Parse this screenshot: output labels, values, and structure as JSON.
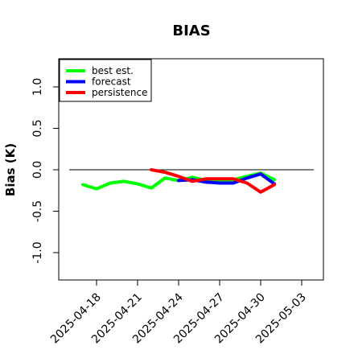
{
  "chart_data": {
    "type": "line",
    "title": "BIAS",
    "xlabel": "",
    "ylabel": "Bias (K)",
    "ylim": [
      -1.35,
      1.35
    ],
    "xlim": [
      "2025-04-15",
      "2025-05-04"
    ],
    "yticks": [
      1.0,
      0.5,
      0.0,
      -0.5,
      -1.0
    ],
    "ytick_labels": [
      "1.0",
      "0.5",
      "0.0",
      "-0.5",
      "-1.0"
    ],
    "xticks": [
      "2025-04-18",
      "2025-04-21",
      "2025-04-24",
      "2025-04-27",
      "2025-04-30",
      "2025-05-03"
    ],
    "xtick_labels": [
      "2025-04-18",
      "2025-04-21",
      "2025-04-24",
      "2025-04-27",
      "2025-04-30",
      "2025-05-03"
    ],
    "xtick_colors": [
      "#000000",
      "#000000",
      "#2e8b22",
      "#000000",
      "#000000",
      "#000000"
    ],
    "reference_line": 0.0,
    "legend": {
      "position": "top-left"
    },
    "grid": false,
    "series": [
      {
        "name": "best est.",
        "color": "#00ff00",
        "x": [
          "2025-04-17",
          "2025-04-18",
          "2025-04-19",
          "2025-04-20",
          "2025-04-21",
          "2025-04-22",
          "2025-04-23",
          "2025-04-24",
          "2025-04-25",
          "2025-04-26",
          "2025-04-27",
          "2025-04-28",
          "2025-04-29",
          "2025-04-30",
          "2025-05-01"
        ],
        "values": [
          -0.18,
          -0.23,
          -0.16,
          -0.14,
          -0.17,
          -0.22,
          -0.1,
          -0.13,
          -0.09,
          -0.13,
          -0.13,
          -0.12,
          -0.08,
          -0.04,
          -0.12
        ]
      },
      {
        "name": "forecast",
        "color": "#0000ff",
        "x": [
          "2025-04-24",
          "2025-04-25",
          "2025-04-26",
          "2025-04-27",
          "2025-04-28",
          "2025-04-29",
          "2025-04-30",
          "2025-05-01"
        ],
        "values": [
          -0.13,
          -0.12,
          -0.15,
          -0.16,
          -0.16,
          -0.1,
          -0.05,
          -0.17
        ]
      },
      {
        "name": "persistence",
        "color": "#ff0000",
        "x": [
          "2025-04-22",
          "2025-04-23",
          "2025-04-24",
          "2025-04-25",
          "2025-04-26",
          "2025-04-27",
          "2025-04-28",
          "2025-04-29",
          "2025-04-30",
          "2025-05-01"
        ],
        "values": [
          0.0,
          -0.03,
          -0.08,
          -0.14,
          -0.11,
          -0.11,
          -0.11,
          -0.16,
          -0.27,
          -0.18
        ]
      }
    ]
  }
}
